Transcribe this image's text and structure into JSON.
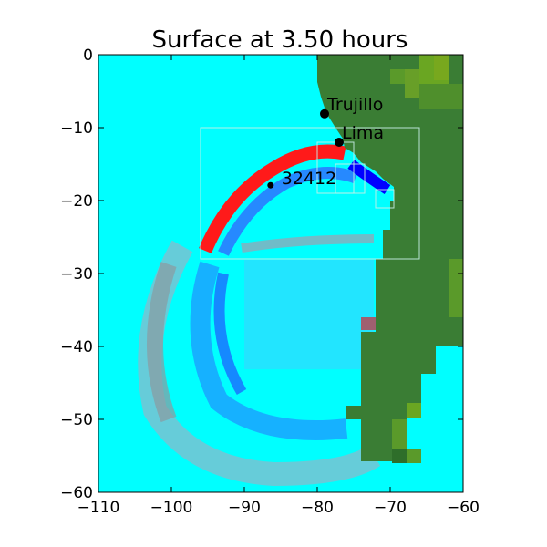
{
  "chart_data": {
    "type": "heatmap",
    "title": "Surface at 3.50 hours",
    "xlabel": "",
    "ylabel": "",
    "xlim": [
      -110,
      -60
    ],
    "ylim": [
      -60,
      0
    ],
    "x_ticks": [
      -110,
      -100,
      -90,
      -80,
      -70,
      -60
    ],
    "y_ticks": [
      0,
      -10,
      -20,
      -30,
      -40,
      -50,
      -60
    ],
    "x_tick_labels": [
      "−110",
      "−100",
      "−90",
      "−80",
      "−70",
      "−60"
    ],
    "y_tick_labels": [
      "0",
      "−10",
      "−20",
      "−30",
      "−40",
      "−50",
      "−60"
    ],
    "colors": {
      "ocean": "#00ffff",
      "land": "#3a7d34",
      "high_land": "#7aa71f",
      "wave_crest": "#ff0000",
      "wave_trough": "#0000ff",
      "wave_mid": "#1aa3ff",
      "wave_faint": "#7fd4ff",
      "grid_box": "#c8f0e8"
    },
    "annotations": [
      {
        "label": "Trujillo",
        "x": -79.0,
        "y": -8.1
      },
      {
        "label": "Lima",
        "x": -77.0,
        "y": -12.0
      },
      {
        "label": "32412",
        "x": -86.4,
        "y": -17.9
      }
    ],
    "refinement_boxes": [
      {
        "x0": -96,
        "x1": -66,
        "y0": -28,
        "y1": -10
      },
      {
        "x0": -80,
        "x1": -75,
        "y0": -19,
        "y1": -12
      },
      {
        "x0": -77.5,
        "x1": -73.5,
        "y0": -19,
        "y1": -15
      },
      {
        "x0": -72,
        "x1": -69.5,
        "y0": -21,
        "y1": -18.5
      }
    ]
  }
}
